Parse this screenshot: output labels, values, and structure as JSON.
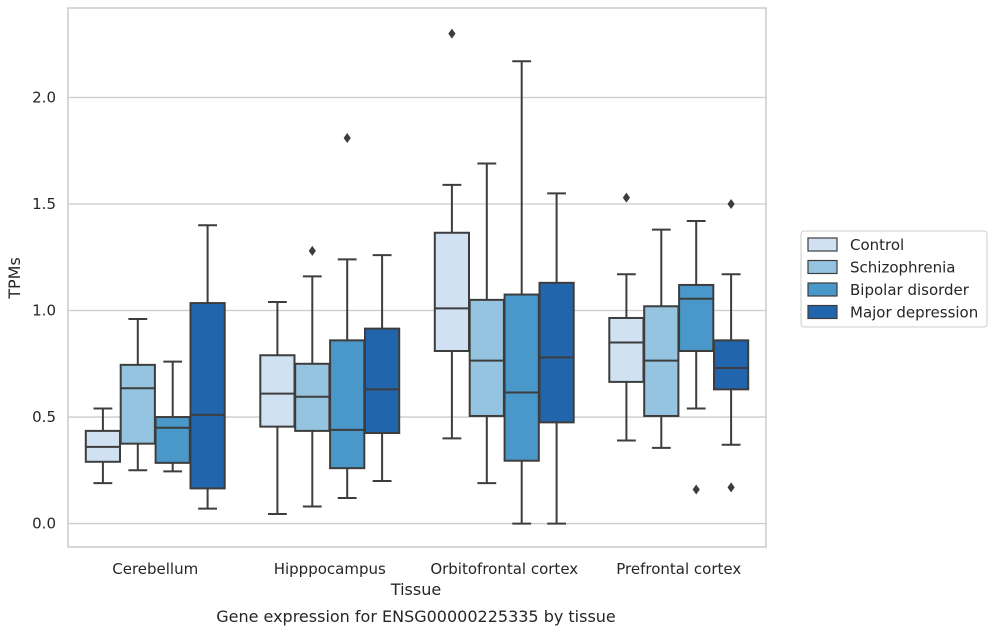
{
  "chart_data": {
    "type": "box",
    "xlabel": "Tissue",
    "ylabel": "TPMs",
    "caption": "Gene expression for ENSG00000225335 by tissue",
    "categories": [
      "Cerebellum",
      "Hipppocampus",
      "Orbitofrontal cortex",
      "Prefrontal cortex"
    ],
    "ylim": [
      -0.11,
      2.42
    ],
    "yticks": [
      0.0,
      0.5,
      1.0,
      1.5,
      2.0
    ],
    "ytick_labels": [
      "0.0",
      "0.5",
      "1.0",
      "1.5",
      "2.0"
    ],
    "grid": "horizontal",
    "legend_position": "right",
    "series": [
      {
        "name": "Control",
        "color": "#d0e1f2",
        "boxes": [
          {
            "whislo": 0.19,
            "q1": 0.29,
            "med": 0.36,
            "q3": 0.435,
            "whishi": 0.54,
            "fliers": []
          },
          {
            "whislo": 0.045,
            "q1": 0.455,
            "med": 0.61,
            "q3": 0.79,
            "whishi": 1.04,
            "fliers": []
          },
          {
            "whislo": 0.4,
            "q1": 0.81,
            "med": 1.01,
            "q3": 1.365,
            "whishi": 1.59,
            "fliers": [
              2.3
            ]
          },
          {
            "whislo": 0.39,
            "q1": 0.665,
            "med": 0.85,
            "q3": 0.965,
            "whishi": 1.17,
            "fliers": [
              1.53
            ]
          }
        ]
      },
      {
        "name": "Schizophrenia",
        "color": "#94c4df",
        "boxes": [
          {
            "whislo": 0.25,
            "q1": 0.375,
            "med": 0.635,
            "q3": 0.745,
            "whishi": 0.96,
            "fliers": []
          },
          {
            "whislo": 0.08,
            "q1": 0.435,
            "med": 0.595,
            "q3": 0.75,
            "whishi": 1.16,
            "fliers": [
              1.28
            ]
          },
          {
            "whislo": 0.19,
            "q1": 0.505,
            "med": 0.765,
            "q3": 1.05,
            "whishi": 1.69,
            "fliers": []
          },
          {
            "whislo": 0.355,
            "q1": 0.505,
            "med": 0.765,
            "q3": 1.02,
            "whishi": 1.38,
            "fliers": []
          }
        ]
      },
      {
        "name": "Bipolar disorder",
        "color": "#4a98c9",
        "boxes": [
          {
            "whislo": 0.245,
            "q1": 0.285,
            "med": 0.45,
            "q3": 0.5,
            "whishi": 0.76,
            "fliers": []
          },
          {
            "whislo": 0.12,
            "q1": 0.26,
            "med": 0.44,
            "q3": 0.86,
            "whishi": 1.24,
            "fliers": [
              1.81
            ]
          },
          {
            "whislo": 0.0,
            "q1": 0.295,
            "med": 0.615,
            "q3": 1.075,
            "whishi": 2.17,
            "fliers": []
          },
          {
            "whislo": 0.54,
            "q1": 0.81,
            "med": 1.055,
            "q3": 1.12,
            "whishi": 1.42,
            "fliers": [
              0.16
            ]
          }
        ]
      },
      {
        "name": "Major depression",
        "color": "#2166ac",
        "boxes": [
          {
            "whislo": 0.07,
            "q1": 0.165,
            "med": 0.51,
            "q3": 1.035,
            "whishi": 1.4,
            "fliers": []
          },
          {
            "whislo": 0.2,
            "q1": 0.425,
            "med": 0.63,
            "q3": 0.915,
            "whishi": 1.26,
            "fliers": []
          },
          {
            "whislo": 0.0,
            "q1": 0.475,
            "med": 0.78,
            "q3": 1.13,
            "whishi": 1.55,
            "fliers": []
          },
          {
            "whislo": 0.37,
            "q1": 0.63,
            "med": 0.73,
            "q3": 0.86,
            "whishi": 1.17,
            "fliers": [
              1.5,
              0.17
            ]
          }
        ]
      }
    ]
  }
}
